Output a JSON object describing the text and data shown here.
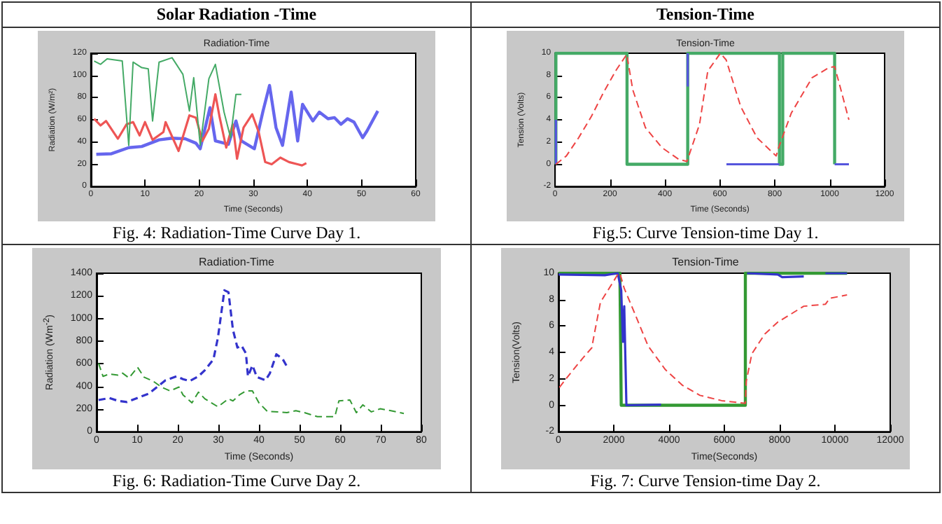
{
  "chart_data": [
    {
      "type": "line",
      "subtitle": "Solar Radiation -Time",
      "title": "Radiation-Time",
      "xlabel": "Time (Seconds)",
      "ylabel": "Radiation (W/m²)",
      "annotations": [
        "Fig. 4: Radiation-Time Curve Day 1."
      ],
      "xlim": [
        0,
        60
      ],
      "ylim": [
        0,
        120
      ],
      "xticks": [
        0,
        10,
        20,
        30,
        40,
        50,
        60
      ],
      "yticks": [
        0,
        20,
        40,
        60,
        80,
        100,
        120
      ],
      "series": [
        {
          "color": "#6666ee",
          "line_style": "solid",
          "x": [
            1,
            3.8,
            7,
            9.4,
            12.6,
            15,
            17.4,
            19.4,
            20.2,
            22,
            23,
            25.4,
            26.8,
            27.8,
            30.2,
            31.8,
            33,
            34.2,
            35.4,
            37,
            38.2,
            39.1,
            41,
            42.2,
            43.8,
            45,
            46.2,
            47.4,
            48.6,
            50.2,
            51,
            53
          ],
          "values": [
            29,
            29.5,
            35,
            36,
            42,
            43.5,
            43,
            39,
            34,
            71,
            41,
            38,
            59,
            41,
            34,
            68,
            91,
            53,
            37,
            85,
            41,
            74,
            59,
            67,
            61,
            62,
            56,
            61,
            58,
            44,
            50,
            68
          ]
        },
        {
          "color": "#ee5555",
          "line_style": "solid",
          "x": [
            0.6,
            1.8,
            2.8,
            5,
            6.6,
            7.8,
            9,
            10,
            11.4,
            13.4,
            13.8,
            16.2,
            18.2,
            19.4,
            20.6,
            21.8,
            23,
            23.8,
            25,
            26.2,
            27,
            28.2,
            29.8,
            31,
            32.2,
            33.4,
            35,
            36.6,
            38.2,
            39,
            39.8
          ],
          "values": [
            61,
            55,
            59,
            43,
            56,
            58,
            46,
            58,
            42,
            49,
            58,
            32,
            64,
            62,
            41,
            52,
            83,
            62,
            35,
            56,
            25,
            53,
            65,
            49,
            22,
            20,
            26,
            22,
            20,
            19,
            21
          ]
        },
        {
          "color": "#44aa66",
          "line_style": "solid",
          "x": [
            0.6,
            1.8,
            3,
            5.8,
            7,
            7.8,
            9.4,
            10.6,
            11.4,
            12.6,
            15,
            17,
            18.2,
            19,
            20.2,
            21.8,
            23,
            24.6,
            25.8,
            26.8,
            27.8
          ],
          "values": [
            113,
            110,
            115,
            113,
            37,
            112,
            107,
            106,
            59,
            112,
            116,
            101,
            68,
            98,
            37,
            97,
            110,
            67,
            44,
            83,
            83
          ]
        }
      ]
    },
    {
      "type": "line",
      "subtitle": "Tension-Time",
      "title": "Tension-Time",
      "xlabel": "Time (Seconds)",
      "ylabel": "Tension (Volts)",
      "annotations": [
        "Fig.5: Curve Tension-time Day 1."
      ],
      "xlim": [
        0,
        1200
      ],
      "ylim": [
        -2,
        10
      ],
      "xticks": [
        0,
        200,
        400,
        600,
        800,
        1000,
        1200
      ],
      "yticks": [
        -2,
        0,
        2,
        4,
        6,
        8,
        10
      ],
      "series": [
        {
          "color": "#44aa66",
          "line_style": "solid",
          "x": [
            3,
            3,
            262,
            262,
            483,
            483,
            817,
            817,
            829,
            829,
            1018,
            1018
          ],
          "values": [
            0,
            10,
            10,
            0,
            0,
            10,
            10,
            0,
            0,
            10,
            10,
            0
          ]
        },
        {
          "color": "#5555dd",
          "line_style": "solid",
          "x": [
            3,
            3,
            200,
            483,
            483,
            550,
            624,
            817,
            900,
            1018,
            1070
          ],
          "values": [
            0,
            4,
            null,
            10,
            7,
            null,
            0,
            0,
            null,
            0,
            0
          ]
        },
        {
          "color": "#ee4444",
          "line_style": "dashed",
          "x": [
            3,
            41,
            86,
            132,
            177,
            223,
            261,
            283,
            329,
            389,
            450,
            480,
            526,
            556,
            602,
            623,
            676,
            735,
            805,
            814,
            860,
            936,
            997,
            1018,
            1041,
            1070
          ],
          "values": [
            0,
            0.75,
            2.4,
            4.3,
            6.5,
            8.5,
            9.9,
            6.7,
            3.3,
            1.5,
            0.45,
            0.25,
            3.6,
            8.4,
            10,
            9.4,
            5.2,
            2.4,
            0.75,
            1.5,
            4.6,
            7.8,
            8.7,
            8.8,
            6.7,
            4
          ]
        }
      ]
    },
    {
      "type": "line",
      "title": "Radiation-Time",
      "xlabel": "Time (Seconds)",
      "ylabel": "Radiation (Wm$^{-2}$)",
      "annotations": [
        "Fig. 6: Radiation-Time Curve Day 2."
      ],
      "xlim": [
        0,
        80
      ],
      "ylim": [
        0,
        1400
      ],
      "xticks": [
        0,
        10,
        20,
        30,
        40,
        50,
        60,
        70,
        80
      ],
      "yticks": [
        0,
        200,
        400,
        600,
        800,
        1000,
        1200,
        1400
      ],
      "series": [
        {
          "color": "#3333cc",
          "line_style": "dashed",
          "x": [
            0.5,
            3.2,
            5.3,
            7.5,
            10.7,
            12.8,
            14.9,
            17,
            19.7,
            21.3,
            22.9,
            25.1,
            26.7,
            28.8,
            29.9,
            31.5,
            32.5,
            33.6,
            34.7,
            35.7,
            36.8,
            37.3,
            38.4,
            39.5,
            41.6,
            42.7,
            44.3,
            45.9,
            47
          ],
          "values": [
            280,
            297,
            272,
            262,
            307,
            335,
            394,
            454,
            489,
            464,
            447,
            489,
            544,
            639,
            831,
            1249,
            1232,
            900,
            743,
            761,
            691,
            489,
            586,
            482,
            454,
            516,
            684,
            639,
            569
          ]
        },
        {
          "color": "#339933",
          "line_style": "dashed",
          "x": [
            0.5,
            1.6,
            3.2,
            5.3,
            6.4,
            8,
            10.1,
            11.7,
            13.9,
            16,
            18.1,
            20.3,
            21.3,
            23.5,
            25.1,
            26.7,
            29.9,
            32.5,
            33.6,
            35.2,
            36.8,
            38.4,
            40,
            42.1,
            44.8,
            46.9,
            49.1,
            51.2,
            54.4,
            58.7,
            59.7,
            62.4,
            64,
            65.6,
            67.7,
            69.9,
            72.5,
            75.7
          ],
          "values": [
            604,
            489,
            510,
            499,
            517,
            475,
            569,
            482,
            447,
            394,
            360,
            394,
            325,
            255,
            349,
            290,
            220,
            290,
            272,
            325,
            360,
            360,
            255,
            178,
            175,
            168,
            185,
            168,
            133,
            133,
            272,
            280,
            168,
            237,
            175,
            202,
            185,
            161
          ]
        }
      ]
    },
    {
      "type": "line",
      "title": "Tension-Time",
      "xlabel": "Time(Seconds)",
      "ylabel": "Tension(Volts)",
      "annotations": [
        "Fig. 7: Curve Tension-time Day 2."
      ],
      "xlim": [
        0,
        12000
      ],
      "ylim": [
        -2,
        10
      ],
      "xticks": [
        0,
        2000,
        4000,
        6000,
        8000,
        10000,
        12000
      ],
      "yticks": [
        -2,
        0,
        2,
        4,
        6,
        8,
        10
      ],
      "series": [
        {
          "color": "#339933",
          "line_style": "solid",
          "x": [
            0,
            2222,
            2270,
            6760,
            6760,
            10438
          ],
          "values": [
            10,
            10,
            0,
            0,
            10,
            10
          ]
        },
        {
          "color": "#3333cc",
          "line_style": "solid",
          "x": [
            0,
            1674,
            2144,
            2270,
            2332,
            2379,
            2457,
            3709,
            5000,
            6823,
            7934,
            8091,
            8873,
            9200,
            9656,
            10438
          ],
          "values": [
            9.9,
            9.85,
            10,
            8.7,
            4.8,
            7.5,
            0,
            0.05,
            null,
            10,
            9.9,
            9.7,
            9.75,
            null,
            10,
            10
          ]
        },
        {
          "color": "#ee4444",
          "line_style": "dashed",
          "x": [
            31,
            423,
            892,
            1205,
            1283,
            1518,
            1831,
            2144,
            2222,
            2379,
            2770,
            3239,
            3865,
            4491,
            5117,
            5900,
            6760,
            6792,
            6995,
            7465,
            7934,
            8404,
            8873,
            9656,
            9812,
            10438
          ],
          "values": [
            1.35,
            2.4,
            3.6,
            4.35,
            5.25,
            7.8,
            8.85,
            9.9,
            10,
            8.85,
            6.9,
            4.5,
            2.7,
            1.5,
            0.75,
            0.35,
            0.15,
            1.8,
            3.9,
            5.4,
            6.3,
            6.9,
            7.5,
            7.65,
            8.1,
            8.35
          ]
        }
      ]
    }
  ]
}
